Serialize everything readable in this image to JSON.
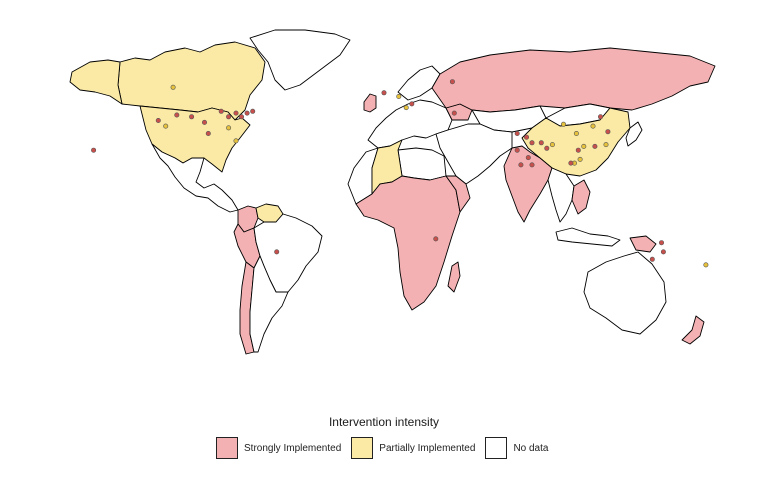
{
  "legend": {
    "title": "Intervention intensity",
    "items": [
      {
        "key": "strong",
        "label": "Strongly Implemented",
        "color": "#f4b1b3"
      },
      {
        "key": "partial",
        "label": "Partially Implemented",
        "color": "#faeaa6"
      },
      {
        "key": "none",
        "label": "No data",
        "color": "#ffffff"
      }
    ]
  },
  "map": {
    "point_colors": {
      "strong": "#c8504c",
      "partial": "#e6c13c"
    },
    "regions": [
      {
        "name": "Canada",
        "category": "partial"
      },
      {
        "name": "United States",
        "category": "partial"
      },
      {
        "name": "Alaska",
        "category": "partial"
      },
      {
        "name": "Greenland",
        "category": "none"
      },
      {
        "name": "Mexico & Central America",
        "category": "none"
      },
      {
        "name": "Colombia",
        "category": "strong"
      },
      {
        "name": "Venezuela",
        "category": "partial"
      },
      {
        "name": "Peru",
        "category": "strong"
      },
      {
        "name": "Brazil",
        "category": "none"
      },
      {
        "name": "Chile",
        "category": "strong"
      },
      {
        "name": "Argentina",
        "category": "none"
      },
      {
        "name": "Russia",
        "category": "strong"
      },
      {
        "name": "Europe",
        "category": "none"
      },
      {
        "name": "Ukraine",
        "category": "strong"
      },
      {
        "name": "United Kingdom",
        "category": "strong"
      },
      {
        "name": "China",
        "category": "partial"
      },
      {
        "name": "Mongolia",
        "category": "none"
      },
      {
        "name": "India",
        "category": "strong"
      },
      {
        "name": "Kazakhstan",
        "category": "none"
      },
      {
        "name": "Middle East",
        "category": "none"
      },
      {
        "name": "Southeast Asia",
        "category": "none"
      },
      {
        "name": "Vietnam",
        "category": "strong"
      },
      {
        "name": "Japan",
        "category": "none"
      },
      {
        "name": "Indonesia",
        "category": "none"
      },
      {
        "name": "Papua New Guinea",
        "category": "strong"
      },
      {
        "name": "Australia",
        "category": "none"
      },
      {
        "name": "New Zealand",
        "category": "strong"
      },
      {
        "name": "Algeria",
        "category": "partial"
      },
      {
        "name": "North & West Africa",
        "category": "none"
      },
      {
        "name": "Sub-Saharan Africa",
        "category": "strong"
      },
      {
        "name": "Ethiopia",
        "category": "strong"
      },
      {
        "name": "Madagascar",
        "category": "strong"
      }
    ],
    "points": [
      {
        "lon": -114,
        "lat": 55,
        "category": "partial"
      },
      {
        "lon": -97,
        "lat": 36,
        "category": "strong"
      },
      {
        "lon": -112,
        "lat": 40,
        "category": "strong"
      },
      {
        "lon": -104,
        "lat": 39,
        "category": "strong"
      },
      {
        "lon": -88,
        "lat": 42,
        "category": "strong"
      },
      {
        "lon": -84,
        "lat": 39,
        "category": "strong"
      },
      {
        "lon": -80,
        "lat": 41,
        "category": "strong"
      },
      {
        "lon": -74,
        "lat": 41,
        "category": "strong"
      },
      {
        "lon": -71,
        "lat": 42,
        "category": "strong"
      },
      {
        "lon": -77,
        "lat": 39,
        "category": "strong"
      },
      {
        "lon": -122,
        "lat": 37,
        "category": "strong"
      },
      {
        "lon": -118,
        "lat": 34,
        "category": "partial"
      },
      {
        "lon": -95,
        "lat": 30,
        "category": "strong"
      },
      {
        "lon": -84,
        "lat": 33,
        "category": "partial"
      },
      {
        "lon": -80,
        "lat": 26,
        "category": "partial"
      },
      {
        "lon": -157,
        "lat": 21,
        "category": "strong"
      },
      {
        "lon": -58,
        "lat": -34,
        "category": "strong"
      },
      {
        "lon": 0,
        "lat": 52,
        "category": "strong"
      },
      {
        "lon": 8,
        "lat": 50,
        "category": "partial"
      },
      {
        "lon": 15,
        "lat": 46,
        "category": "strong"
      },
      {
        "lon": 12,
        "lat": 44,
        "category": "partial"
      },
      {
        "lon": 37,
        "lat": 58,
        "category": "strong"
      },
      {
        "lon": 38,
        "lat": 41,
        "category": "strong"
      },
      {
        "lon": 28,
        "lat": -27,
        "category": "strong"
      },
      {
        "lon": 72,
        "lat": 30,
        "category": "strong"
      },
      {
        "lon": 77,
        "lat": 28,
        "category": "strong"
      },
      {
        "lon": 80,
        "lat": 25,
        "category": "strong"
      },
      {
        "lon": 85,
        "lat": 25,
        "category": "strong"
      },
      {
        "lon": 72,
        "lat": 21,
        "category": "strong"
      },
      {
        "lon": 78,
        "lat": 17,
        "category": "strong"
      },
      {
        "lon": 74,
        "lat": 13,
        "category": "strong"
      },
      {
        "lon": 80,
        "lat": 13,
        "category": "strong"
      },
      {
        "lon": 88,
        "lat": 22,
        "category": "strong"
      },
      {
        "lon": 91,
        "lat": 24,
        "category": "partial"
      },
      {
        "lon": 97,
        "lat": 35,
        "category": "partial"
      },
      {
        "lon": 104,
        "lat": 30,
        "category": "partial"
      },
      {
        "lon": 113,
        "lat": 34,
        "category": "partial"
      },
      {
        "lon": 117,
        "lat": 39,
        "category": "strong"
      },
      {
        "lon": 121,
        "lat": 31,
        "category": "strong"
      },
      {
        "lon": 114,
        "lat": 23,
        "category": "strong"
      },
      {
        "lon": 108,
        "lat": 23,
        "category": "partial"
      },
      {
        "lon": 120,
        "lat": 24,
        "category": "partial"
      },
      {
        "lon": 105,
        "lat": 21,
        "category": "strong"
      },
      {
        "lon": 103,
        "lat": 14,
        "category": "partial"
      },
      {
        "lon": 101,
        "lat": 14,
        "category": "strong"
      },
      {
        "lon": 106,
        "lat": 16,
        "category": "partial"
      },
      {
        "lon": 150,
        "lat": -29,
        "category": "strong"
      },
      {
        "lon": 151,
        "lat": -34,
        "category": "strong"
      },
      {
        "lon": 145,
        "lat": -38,
        "category": "strong"
      },
      {
        "lon": 174,
        "lat": -41,
        "category": "partial"
      }
    ]
  }
}
